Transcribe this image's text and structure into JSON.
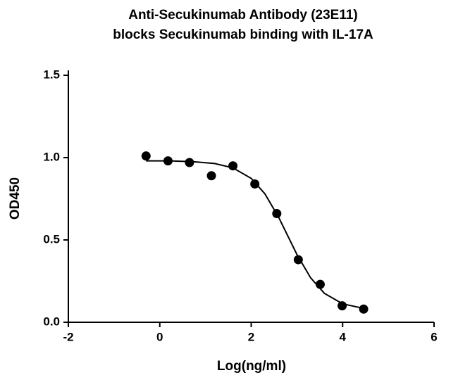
{
  "chart_data": {
    "type": "scatter",
    "title": [
      "Anti-Secukinumab Antibody (23E11)",
      "blocks Secukinumab binding with IL-17A"
    ],
    "x_label": "Log(ng/ml)",
    "y_label": "OD450",
    "xlim": [
      -2,
      6
    ],
    "ylim": [
      0,
      1.5
    ],
    "xticks": [
      -2,
      0,
      2,
      4,
      6
    ],
    "yticks": [
      {
        "value": 0,
        "label": "0.0"
      },
      0.5,
      {
        "value": 1,
        "label": "1.0"
      },
      1.5
    ],
    "color": "#000000",
    "series": [
      {
        "mode": "markers",
        "color": "#000000",
        "x": [
          -0.3,
          0.18,
          0.65,
          1.13,
          1.6,
          2.08,
          2.56,
          3.03,
          3.51,
          3.99,
          4.46
        ],
        "values": [
          1.01,
          0.98,
          0.97,
          0.89,
          0.95,
          0.84,
          0.66,
          0.38,
          0.23,
          0.1,
          0.08
        ]
      },
      {
        "mode": "line",
        "color": "#000000",
        "x": [
          -0.3,
          0.2,
          0.7,
          1.2,
          1.6,
          2.0,
          2.3,
          2.6,
          2.8,
          3.0,
          3.3,
          3.6,
          4.0,
          4.5
        ],
        "values": [
          0.98,
          0.98,
          0.976,
          0.964,
          0.938,
          0.874,
          0.78,
          0.638,
          0.525,
          0.412,
          0.27,
          0.176,
          0.112,
          0.082
        ]
      }
    ]
  }
}
